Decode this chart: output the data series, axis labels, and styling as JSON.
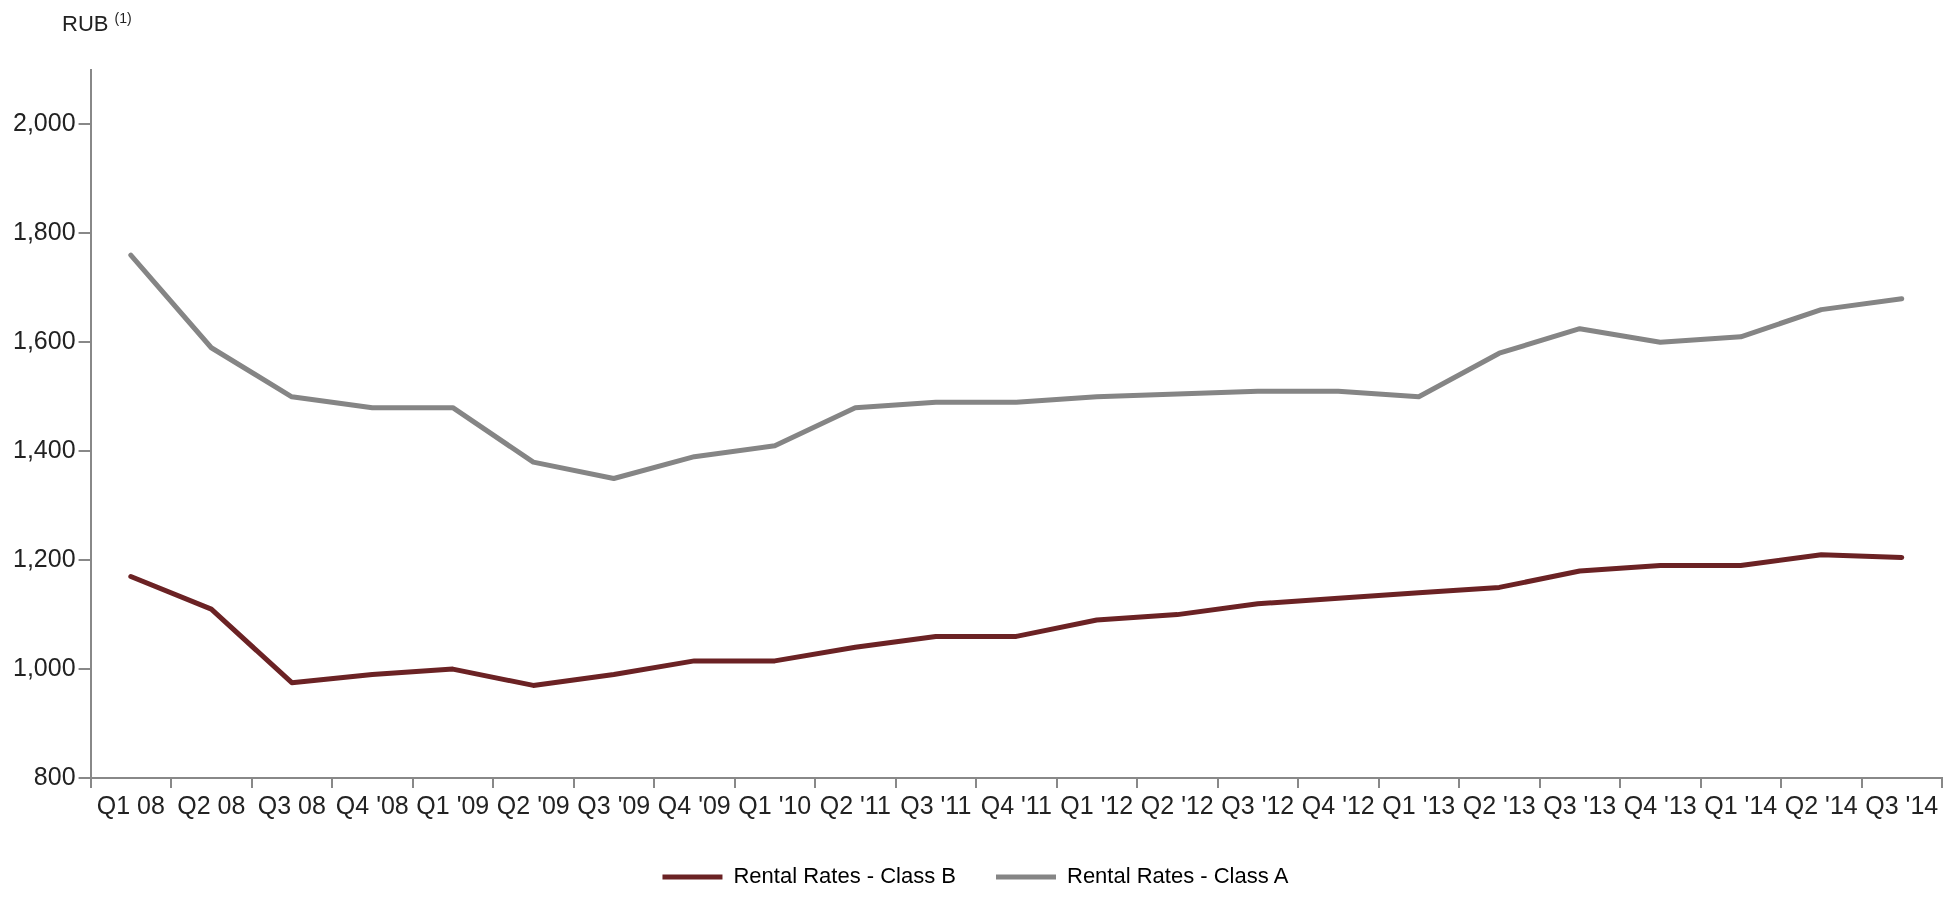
{
  "chart_data": {
    "type": "line",
    "ylabel": "RUB $^{(1)}$",
    "categories": [
      "Q1 08",
      "Q2 08",
      "Q3 08",
      "Q4 '08",
      "Q1 '09",
      "Q2 '09",
      "Q3 '09",
      "Q4 '09",
      "Q1 '10",
      "Q2 '11",
      "Q3 '11",
      "Q4 '11",
      "Q1 '12",
      "Q2 '12",
      "Q3 '12",
      "Q4 '12",
      "Q1 '13",
      "Q2 '13",
      "Q3 '13",
      "Q4 '13",
      "Q1 '14",
      "Q2 '14",
      "Q3 '14"
    ],
    "series": [
      {
        "name": "Rental Rates - Class B",
        "color": "#6b2224",
        "values": [
          1170,
          1110,
          975,
          990,
          1000,
          970,
          990,
          1015,
          1015,
          1040,
          1060,
          1060,
          1090,
          1100,
          1120,
          1130,
          1140,
          1150,
          1180,
          1190,
          1190,
          1210,
          1205
        ]
      },
      {
        "name": "Rental Rates - Class A",
        "color": "#858585",
        "values": [
          1760,
          1590,
          1500,
          1480,
          1480,
          1380,
          1350,
          1390,
          1410,
          1480,
          1490,
          1490,
          1500,
          1505,
          1510,
          1510,
          1500,
          1580,
          1625,
          1600,
          1610,
          1660,
          1680
        ]
      }
    ],
    "ylim": [
      800,
      2100
    ],
    "yticks": [
      800,
      {
        "value": 1000,
        "label": "1,000"
      },
      {
        "value": 1200,
        "label": "1,200"
      },
      {
        "value": 1400,
        "label": "1,400"
      },
      {
        "value": 1600,
        "label": "1,600"
      },
      {
        "value": 1800,
        "label": "1,800"
      },
      {
        "value": 2000,
        "label": "2,000"
      }
    ],
    "grid": false,
    "legend": "bottom",
    "marker": "none",
    "line_style": "solid"
  }
}
